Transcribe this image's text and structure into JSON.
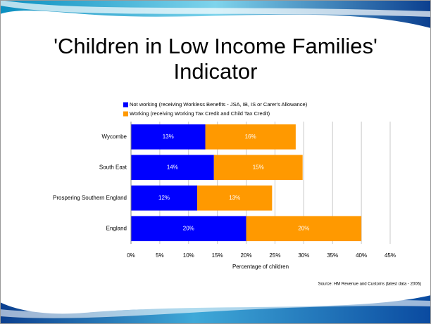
{
  "chart_data": {
    "type": "stacked_barh",
    "title": "'Children in Low Income Families' Indicator",
    "categories": [
      "Wycombe",
      "South East",
      "Prospering Southern England",
      "England"
    ],
    "series": [
      {
        "name": "Not working (receiving Workless Benefits - JSA, IB, IS or Carer's Allowance)",
        "color": "#0000ff",
        "values": [
          12.9,
          14.4,
          11.5,
          20.0
        ],
        "value_labels": [
          "13%",
          "14%",
          "12%",
          "20%"
        ]
      },
      {
        "name": "Working (receiving Working Tax Credit and Child Tax Credit)",
        "color": "#ff9900",
        "values": [
          15.7,
          15.4,
          13.0,
          20.0
        ],
        "value_labels": [
          "16%",
          "15%",
          "13%",
          "20%"
        ]
      }
    ],
    "xlim": [
      0,
      45
    ],
    "xticks": [
      {
        "value": 0,
        "label": "0%"
      },
      {
        "value": 5,
        "label": "5%"
      },
      {
        "value": 10,
        "label": "10%"
      },
      {
        "value": 15,
        "label": "15%"
      },
      {
        "value": 20,
        "label": "20%"
      },
      {
        "value": 25,
        "label": "25%"
      },
      {
        "value": 30,
        "label": "30%"
      },
      {
        "value": 35,
        "label": "35%"
      },
      {
        "value": 40,
        "label": "40%"
      },
      {
        "value": 45,
        "label": "45%"
      }
    ],
    "xlabel": "Percentage of children",
    "grid": true,
    "source": "Source: HM Revenue and Customs (latest data - 2006)"
  }
}
